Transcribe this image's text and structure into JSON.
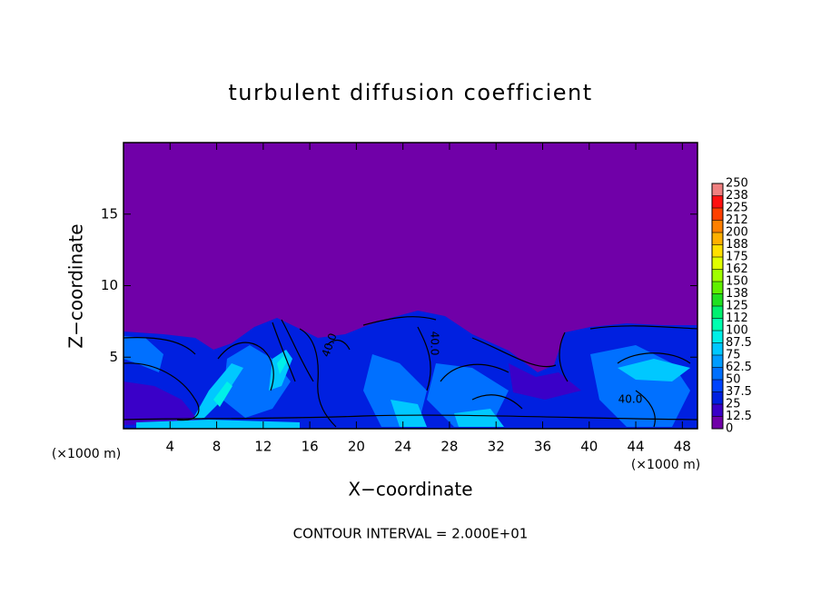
{
  "chart_data": {
    "type": "contour",
    "title": "turbulent diffusion coefficient",
    "x_label": "X−coordinate",
    "y_label": "Z−coordinate",
    "x_unit": "(×1000 m)",
    "y_unit": "(×1000 m)",
    "xlim": [
      0,
      49.3
    ],
    "xticks": [
      4,
      8,
      12,
      16,
      20,
      24,
      28,
      32,
      36,
      40,
      44,
      48
    ],
    "ylim": [
      0,
      20
    ],
    "yticks": [
      5,
      10,
      15
    ],
    "colorbar": {
      "ticks": [
        0,
        12.5,
        25,
        37.5,
        50,
        62.5,
        75,
        87.5,
        100,
        112,
        125,
        138,
        150,
        162,
        175,
        188,
        200,
        212,
        225,
        238,
        250
      ],
      "colors": [
        "#7000a8",
        "#3a00c8",
        "#0020e0",
        "#0044ff",
        "#0070ff",
        "#009cff",
        "#00c8ff",
        "#00f0e8",
        "#00ffb0",
        "#00f070",
        "#20e020",
        "#60f000",
        "#a0ff00",
        "#e0ff00",
        "#ffe000",
        "#ffb000",
        "#ff8000",
        "#ff4000",
        "#ff1010",
        "#f08080"
      ]
    },
    "contour_labels": [
      "40.0",
      "40.0",
      "40.0"
    ],
    "footnote": "CONTOUR INTERVAL = 2.000E+01"
  }
}
